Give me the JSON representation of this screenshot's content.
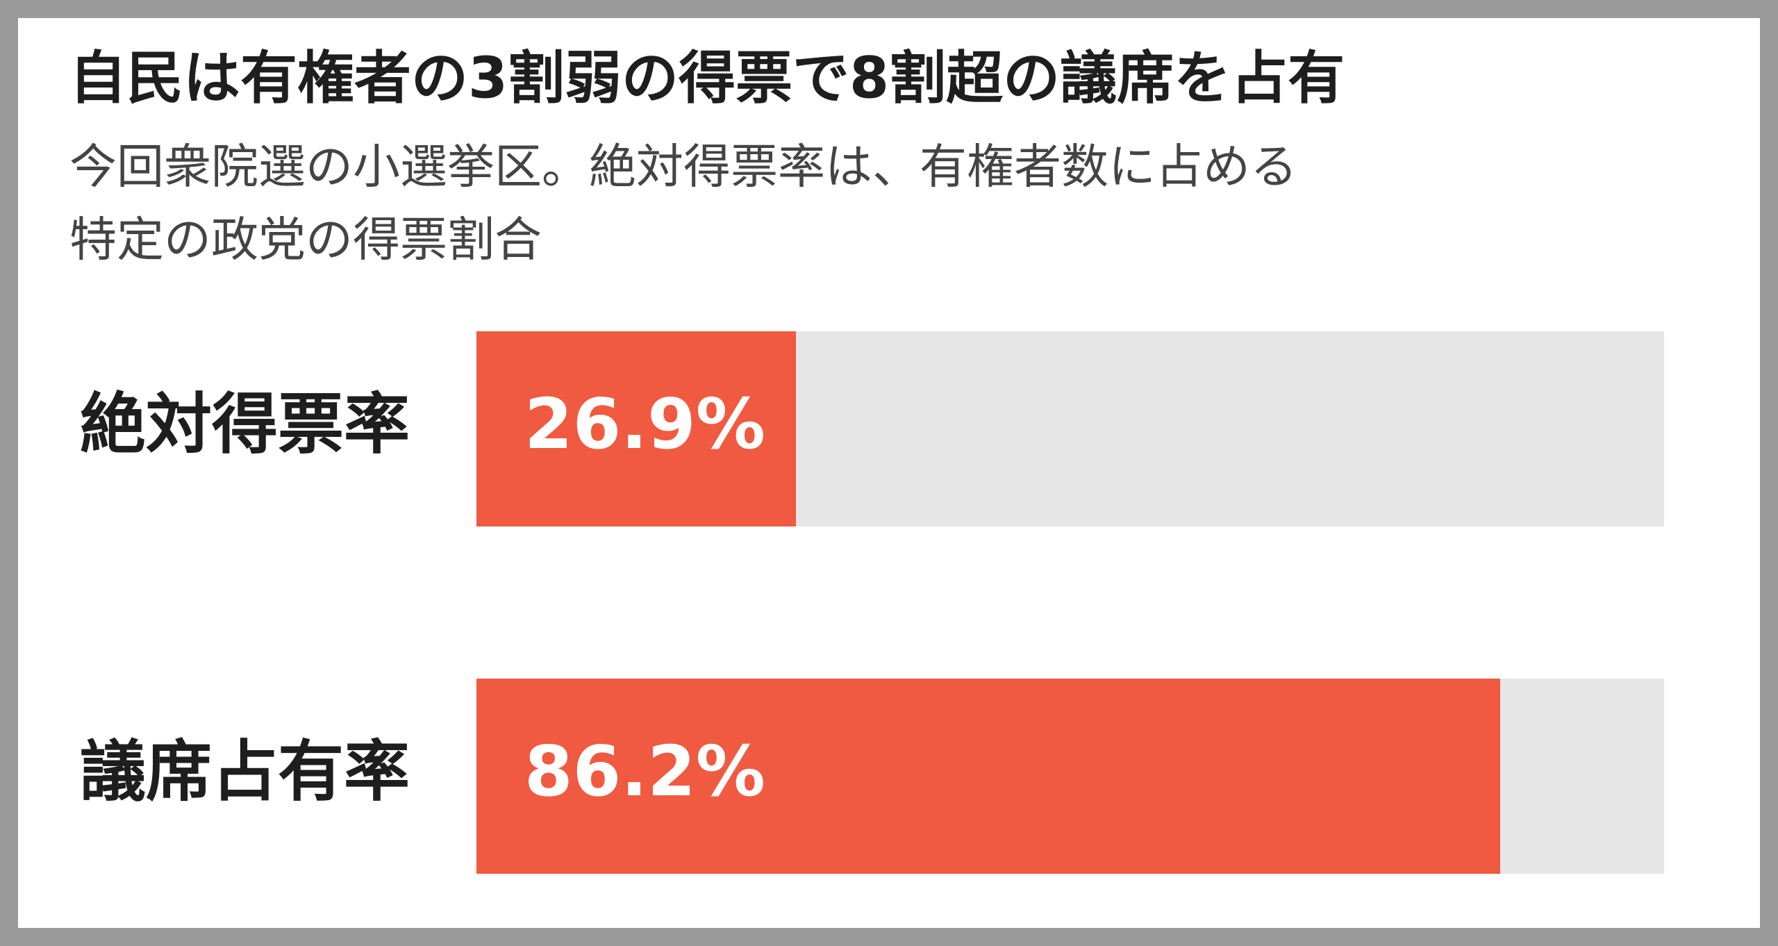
{
  "chart_data": {
    "type": "hbar",
    "title": "自民は有権者の3割弱の得票で8割超の議席を占有",
    "subtitle": [
      "今回衆院選の小選挙区。絶対得票率は、有権者数に占める",
      "特定の政党の得票割合"
    ],
    "categories": [
      "絶対得票率",
      "議席占有率"
    ],
    "values": [
      26.9,
      86.2
    ],
    "value_labels": [
      "26.9%",
      "86.2%"
    ],
    "color": "#f05a40",
    "track_color": "#e6e6e6",
    "xlim": [
      0,
      100
    ]
  }
}
